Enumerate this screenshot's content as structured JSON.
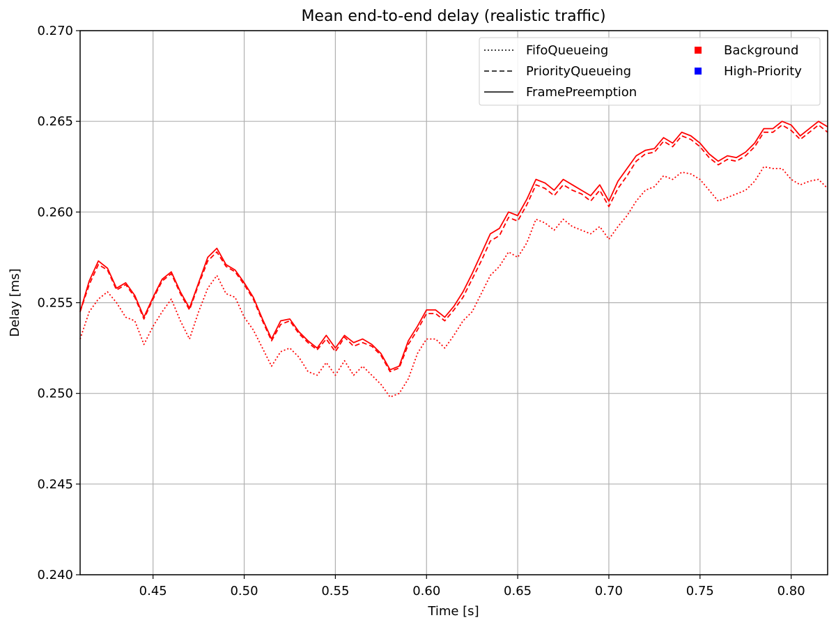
{
  "chart_data": {
    "type": "line",
    "title": "Mean end-to-end delay (realistic traffic)",
    "xlabel": "Time [s]",
    "ylabel": "Delay [ms]",
    "xlim": [
      0.41,
      0.82
    ],
    "ylim": [
      0.24,
      0.27
    ],
    "x_ticks": [
      0.45,
      0.5,
      0.55,
      0.6,
      0.65,
      0.7,
      0.75,
      0.8
    ],
    "x_tick_labels": [
      "0.45",
      "0.50",
      "0.55",
      "0.60",
      "0.65",
      "0.70",
      "0.75",
      "0.80"
    ],
    "y_ticks": [
      0.24,
      0.245,
      0.25,
      0.255,
      0.26,
      0.265,
      0.27
    ],
    "y_tick_labels": [
      "0.240",
      "0.245",
      "0.250",
      "0.255",
      "0.260",
      "0.265",
      "0.270"
    ],
    "grid": true,
    "legend": {
      "placement": "top-right",
      "line_styles": [
        {
          "label": "FifoQueueing",
          "style": "dotted"
        },
        {
          "label": "PriorityQueueing",
          "style": "dashed"
        },
        {
          "label": "FramePreemption",
          "style": "solid"
        }
      ],
      "traffic_classes": [
        {
          "label": "Background",
          "color": "#ff0000"
        },
        {
          "label": "High-Priority",
          "color": "#0000ff"
        }
      ]
    },
    "series": [
      {
        "name": "FifoQueueing",
        "color": "#ff0000",
        "style": "dotted",
        "x": [
          0.41,
          0.415,
          0.42,
          0.425,
          0.43,
          0.435,
          0.44,
          0.445,
          0.45,
          0.455,
          0.46,
          0.465,
          0.47,
          0.475,
          0.48,
          0.485,
          0.49,
          0.495,
          0.5,
          0.505,
          0.51,
          0.515,
          0.52,
          0.525,
          0.53,
          0.535,
          0.54,
          0.545,
          0.55,
          0.555,
          0.56,
          0.565,
          0.57,
          0.575,
          0.58,
          0.585,
          0.59,
          0.595,
          0.6,
          0.605,
          0.61,
          0.615,
          0.62,
          0.625,
          0.63,
          0.635,
          0.64,
          0.645,
          0.65,
          0.655,
          0.66,
          0.665,
          0.67,
          0.675,
          0.68,
          0.685,
          0.69,
          0.695,
          0.7,
          0.705,
          0.71,
          0.715,
          0.72,
          0.725,
          0.73,
          0.735,
          0.74,
          0.745,
          0.75,
          0.755,
          0.76,
          0.765,
          0.77,
          0.775,
          0.78,
          0.785,
          0.79,
          0.795,
          0.8,
          0.805,
          0.81,
          0.815,
          0.82
        ],
        "values": [
          0.253,
          0.2545,
          0.2552,
          0.2556,
          0.255,
          0.2542,
          0.254,
          0.2527,
          0.2537,
          0.2545,
          0.2552,
          0.254,
          0.253,
          0.2545,
          0.2558,
          0.2565,
          0.2555,
          0.2553,
          0.2542,
          0.2535,
          0.2525,
          0.2515,
          0.2523,
          0.2525,
          0.252,
          0.2512,
          0.251,
          0.2517,
          0.251,
          0.2518,
          0.251,
          0.2515,
          0.251,
          0.2505,
          0.2498,
          0.25,
          0.2508,
          0.2522,
          0.253,
          0.253,
          0.2525,
          0.2532,
          0.254,
          0.2545,
          0.2555,
          0.2565,
          0.257,
          0.2578,
          0.2575,
          0.2583,
          0.2596,
          0.2594,
          0.259,
          0.2596,
          0.2592,
          0.259,
          0.2588,
          0.2592,
          0.2585,
          0.2592,
          0.2598,
          0.2606,
          0.2612,
          0.2614,
          0.262,
          0.2618,
          0.2622,
          0.2621,
          0.2618,
          0.2612,
          0.2606,
          0.2608,
          0.261,
          0.2612,
          0.2617,
          0.2625,
          0.2624,
          0.2624,
          0.2618,
          0.2615,
          0.2617,
          0.2618,
          0.2613
        ]
      },
      {
        "name": "PriorityQueueing",
        "color": "#ff0000",
        "style": "dashed",
        "x": [
          0.41,
          0.415,
          0.42,
          0.425,
          0.43,
          0.435,
          0.44,
          0.445,
          0.45,
          0.455,
          0.46,
          0.465,
          0.47,
          0.475,
          0.48,
          0.485,
          0.49,
          0.495,
          0.5,
          0.505,
          0.51,
          0.515,
          0.52,
          0.525,
          0.53,
          0.535,
          0.54,
          0.545,
          0.55,
          0.555,
          0.56,
          0.565,
          0.57,
          0.575,
          0.58,
          0.585,
          0.59,
          0.595,
          0.6,
          0.605,
          0.61,
          0.615,
          0.62,
          0.625,
          0.63,
          0.635,
          0.64,
          0.645,
          0.65,
          0.655,
          0.66,
          0.665,
          0.67,
          0.675,
          0.68,
          0.685,
          0.69,
          0.695,
          0.7,
          0.705,
          0.71,
          0.715,
          0.72,
          0.725,
          0.73,
          0.735,
          0.74,
          0.745,
          0.75,
          0.755,
          0.76,
          0.765,
          0.77,
          0.775,
          0.78,
          0.785,
          0.79,
          0.795,
          0.8,
          0.805,
          0.81,
          0.815,
          0.82
        ],
        "values": [
          0.2545,
          0.256,
          0.2571,
          0.2568,
          0.2557,
          0.256,
          0.2553,
          0.2541,
          0.2552,
          0.2562,
          0.2566,
          0.2555,
          0.2546,
          0.256,
          0.2573,
          0.2578,
          0.257,
          0.2567,
          0.256,
          0.2552,
          0.254,
          0.2529,
          0.2538,
          0.254,
          0.2533,
          0.2528,
          0.2524,
          0.253,
          0.2523,
          0.2531,
          0.2526,
          0.2528,
          0.2526,
          0.2521,
          0.2512,
          0.2514,
          0.2527,
          0.2535,
          0.2544,
          0.2544,
          0.254,
          0.2546,
          0.2553,
          0.2563,
          0.2573,
          0.2584,
          0.2587,
          0.2597,
          0.2595,
          0.2604,
          0.2615,
          0.2613,
          0.2609,
          0.2615,
          0.2612,
          0.261,
          0.2606,
          0.2612,
          0.2603,
          0.2613,
          0.262,
          0.2628,
          0.2632,
          0.2633,
          0.2639,
          0.2636,
          0.2642,
          0.264,
          0.2636,
          0.263,
          0.2626,
          0.2629,
          0.2628,
          0.2631,
          0.2636,
          0.2644,
          0.2644,
          0.2648,
          0.2645,
          0.264,
          0.2644,
          0.2648,
          0.2644
        ]
      },
      {
        "name": "FramePreemption",
        "color": "#ff0000",
        "style": "solid",
        "x": [
          0.41,
          0.415,
          0.42,
          0.425,
          0.43,
          0.435,
          0.44,
          0.445,
          0.45,
          0.455,
          0.46,
          0.465,
          0.47,
          0.475,
          0.48,
          0.485,
          0.49,
          0.495,
          0.5,
          0.505,
          0.51,
          0.515,
          0.52,
          0.525,
          0.53,
          0.535,
          0.54,
          0.545,
          0.55,
          0.555,
          0.56,
          0.565,
          0.57,
          0.575,
          0.58,
          0.585,
          0.59,
          0.595,
          0.6,
          0.605,
          0.61,
          0.615,
          0.62,
          0.625,
          0.63,
          0.635,
          0.64,
          0.645,
          0.65,
          0.655,
          0.66,
          0.665,
          0.67,
          0.675,
          0.68,
          0.685,
          0.69,
          0.695,
          0.7,
          0.705,
          0.71,
          0.715,
          0.72,
          0.725,
          0.73,
          0.735,
          0.74,
          0.745,
          0.75,
          0.755,
          0.76,
          0.765,
          0.77,
          0.775,
          0.78,
          0.785,
          0.79,
          0.795,
          0.8,
          0.805,
          0.81,
          0.815,
          0.82
        ],
        "values": [
          0.2545,
          0.2562,
          0.2573,
          0.2569,
          0.2558,
          0.2561,
          0.2554,
          0.2542,
          0.2553,
          0.2563,
          0.2567,
          0.2556,
          0.2547,
          0.2561,
          0.2575,
          0.258,
          0.2571,
          0.2568,
          0.2561,
          0.2553,
          0.2541,
          0.253,
          0.254,
          0.2541,
          0.2534,
          0.2529,
          0.2525,
          0.2532,
          0.2525,
          0.2532,
          0.2528,
          0.253,
          0.2527,
          0.2522,
          0.2513,
          0.2515,
          0.2529,
          0.2537,
          0.2546,
          0.2546,
          0.2542,
          0.2548,
          0.2556,
          0.2566,
          0.2577,
          0.2588,
          0.2591,
          0.26,
          0.2598,
          0.2607,
          0.2618,
          0.2616,
          0.2612,
          0.2618,
          0.2615,
          0.2612,
          0.2609,
          0.2615,
          0.2606,
          0.2617,
          0.2624,
          0.2631,
          0.2634,
          0.2635,
          0.2641,
          0.2638,
          0.2644,
          0.2642,
          0.2638,
          0.2632,
          0.2628,
          0.2631,
          0.263,
          0.2633,
          0.2638,
          0.2646,
          0.2646,
          0.265,
          0.2648,
          0.2642,
          0.2646,
          0.265,
          0.2647
        ]
      }
    ]
  }
}
